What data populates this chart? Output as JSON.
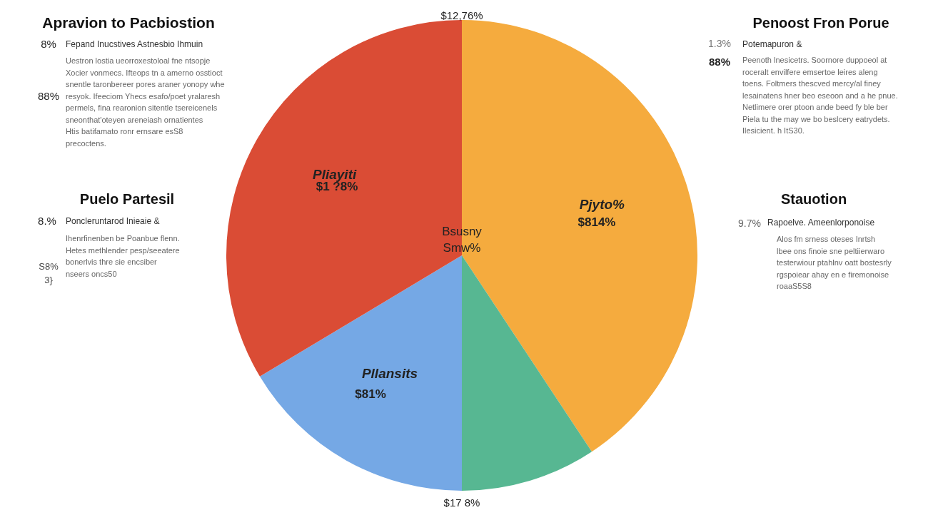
{
  "chart_data": {
    "type": "pie",
    "categories": [
      "Pjyto%",
      null,
      "Pllansits",
      "Pliayiti"
    ],
    "values": [
      40.7,
      9.3,
      16.4,
      33.6
    ],
    "colors": [
      "#f5ab3e",
      "#57b792",
      "#75a8e5",
      "#da4c35"
    ],
    "annotations": [
      "Apravion to Pacbiostion",
      "8%",
      "Fepand  Inucstives Astnesbio Ihmuin",
      "Uestron lostia ueorroxestoloal fne ntsopje\nXocier vonmecs. Ifteops tn a  amerno osstioct\nsnentle taronbereer pores araner yonopy whe\nresyok. Ifeeciom Yhecs esafo/poet yralaresh\npermels, fina rearonion  sitentle tsereicenels\nsneonthat'oteyen areneiash ornatientes\nHtis batifamato ronr ernsare esS8\nprecoctens.",
      "88%",
      "Penoost Fron Porue",
      "1.3%",
      "Potemapuron &",
      "88%",
      "Peenoth lnesicetrs. Soornore duppoeol at\nroceralt envilfere emsertoe leires aleng\ntoens. Foltmers thescved mercy/al finey\nlesainatens hner  beo eseoon and a he pnue.\nNetlimere orer ptoon ande beed fy ble ber\nPiela tu the may we bo beslcery eatrydets.\nIlesicient. h ItS30.",
      "Puelo Partesil",
      "8.%",
      "Poncleruntarod Inieaie &",
      "Ihenrfinenben be Poanbue flenn.\nHetes methlender pesp/seeatere\nbonerlvis thre sie encsiber\nnseers oncs50",
      "S8%\n3}",
      "Stauotion",
      "9.7%",
      "Rapoelve. Ameenlorponoise",
      "Alos fm srness oteses Inrtsh\nlbee ons finoie sne peltiierwaro\ntesterwiour ptahlnv oatt  bostesrly\nrgspoiear ahay en e firemonoise\nroaaS5S8",
      "$12,76%",
      "Bsusny\nSmw%",
      "$17 8%",
      "$814%",
      "$81%",
      "$1 ?8%"
    ]
  }
}
